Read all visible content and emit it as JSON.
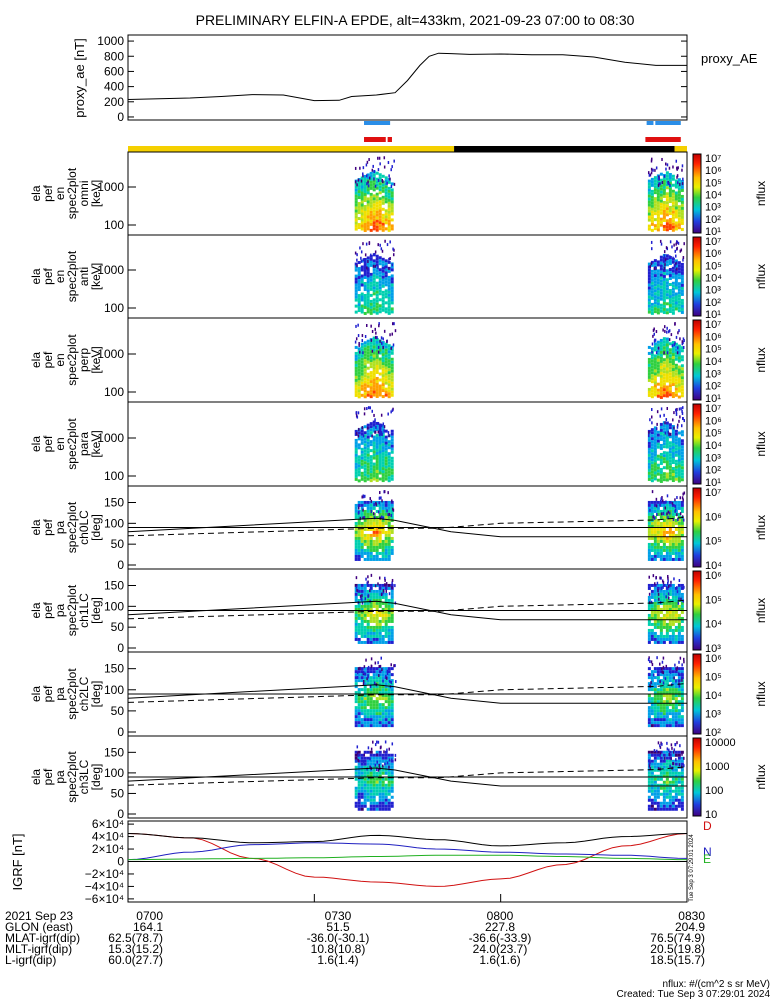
{
  "title": "PRELIMINARY ELFIN-A EPDE, alt=433km, 2021-09-23 07:00 to 08:30",
  "colors": {
    "sunlit_bar": "#f5d000",
    "eclipse_bar": "#000000",
    "blue_bar": "#2a8ee8",
    "red_bar": "#e01010",
    "bx": "#2020c0",
    "by": "#20b020",
    "bz": "#d01010",
    "btot": "#000000"
  },
  "chart_data": [
    {
      "type": "line",
      "name": "proxy_ae",
      "ylabel": "proxy_ae [nT]",
      "series_label": "proxy_AE",
      "ylim": [
        -40,
        1080
      ],
      "yticks": [
        "0",
        "200",
        "400",
        "600",
        "800",
        "1000"
      ],
      "x": [
        0,
        5,
        10,
        15,
        20,
        25,
        30,
        34,
        36,
        40,
        43,
        45,
        47,
        48.5,
        50,
        52,
        55,
        60,
        65,
        70,
        75,
        80,
        85,
        90
      ],
      "values": [
        230,
        240,
        250,
        270,
        295,
        290,
        215,
        220,
        270,
        290,
        320,
        480,
        680,
        800,
        840,
        835,
        825,
        830,
        820,
        820,
        790,
        720,
        680,
        680
      ]
    },
    {
      "type": "heatmap",
      "panels": [
        {
          "ylabel": [
            "ela",
            "pef",
            "en",
            "spec2plot",
            "omni",
            "[keV]"
          ],
          "yticks": [
            "100",
            "1000"
          ]
        },
        {
          "ylabel": [
            "ela",
            "pef",
            "en",
            "spec2plot",
            "anti",
            "[keV]"
          ],
          "yticks": [
            "100",
            "1000"
          ]
        },
        {
          "ylabel": [
            "ela",
            "pef",
            "en",
            "spec2plot",
            "perp",
            "[keV]"
          ],
          "yticks": [
            "100",
            "1000"
          ]
        },
        {
          "ylabel": [
            "ela",
            "pef",
            "en",
            "spec2plot",
            "para",
            "[keV]"
          ],
          "yticks": [
            "100",
            "1000"
          ]
        },
        {
          "ylabel": [
            "ela",
            "pef",
            "pa",
            "spec2plot",
            "ch0LC",
            "[deg]"
          ],
          "yticks": [
            "0",
            "50",
            "100",
            "150"
          ]
        },
        {
          "ylabel": [
            "ela",
            "pef",
            "pa",
            "spec2plot",
            "ch1LC",
            "[deg]"
          ],
          "yticks": [
            "0",
            "50",
            "100",
            "150"
          ]
        },
        {
          "ylabel": [
            "ela",
            "pef",
            "pa",
            "spec2plot",
            "ch2LC",
            "[deg]"
          ],
          "yticks": [
            "0",
            "50",
            "100",
            "150"
          ]
        },
        {
          "ylabel": [
            "ela",
            "pef",
            "pa",
            "spec2plot",
            "ch3LC",
            "[deg]"
          ],
          "yticks": [
            "0",
            "50",
            "100",
            "150"
          ]
        }
      ],
      "colorbar_label": "nflux",
      "colorbar_ticks": [
        [
          "10⁷",
          "10⁶",
          "10⁵",
          "10⁴",
          "10³",
          "10²",
          "10¹"
        ],
        [
          "10⁷",
          "10⁶",
          "10⁵",
          "10⁴",
          "10³",
          "10²",
          "10¹"
        ],
        [
          "10⁷",
          "10⁶",
          "10⁵",
          "10⁴",
          "10³",
          "10²",
          "10¹"
        ],
        [
          "10⁷",
          "10⁶",
          "10⁵",
          "10⁴",
          "10³",
          "10²",
          "10¹"
        ],
        [
          "10⁷",
          "10⁶",
          "10⁵",
          "10⁴"
        ],
        [
          "10⁶",
          "10⁵",
          "10⁴",
          "10³"
        ],
        [
          "10⁶",
          "10⁵",
          "10⁴",
          "10³",
          "10²"
        ],
        [
          "10000",
          "1000",
          "100",
          "10"
        ]
      ]
    },
    {
      "type": "line",
      "name": "igrf",
      "ylabel": "IGRF [nT]",
      "ylim": [
        -65000,
        65000
      ],
      "yticks": [
        "−6×10⁴",
        "−4×10⁴",
        "−2×10⁴",
        "0",
        "2×10⁴",
        "4×10⁴",
        "6×10⁴"
      ],
      "x": [
        0,
        10,
        20,
        30,
        40,
        50,
        60,
        70,
        80,
        90
      ],
      "series": [
        {
          "name": "D",
          "values": [
            45000,
            38000,
            5000,
            -25000,
            -33000,
            -40000,
            -28000,
            -5000,
            25000,
            45000
          ]
        },
        {
          "name": "N",
          "values": [
            3000,
            15000,
            27000,
            30000,
            28000,
            20000,
            15000,
            12000,
            10000,
            5000
          ]
        },
        {
          "name": "E",
          "values": [
            3000,
            4000,
            5000,
            6000,
            8000,
            10000,
            10000,
            8000,
            5000,
            3000
          ]
        },
        {
          "name": "",
          "values": [
            45000,
            38000,
            30000,
            32000,
            42000,
            35000,
            25000,
            30000,
            40000,
            45000
          ]
        }
      ]
    }
  ],
  "footer": {
    "rows": [
      [
        "2021 Sep 23",
        "0700",
        "0730",
        "0800",
        "0830"
      ],
      [
        "GLON (east)",
        "164.1",
        "51.5",
        "227.8",
        "204.9"
      ],
      [
        "MLAT-igrf(dip)",
        "62.5(78.7)",
        "-36.0(-30.1)",
        "-36.6(-33.9)",
        "76.5(74.9)"
      ],
      [
        "MLT-igrf(dip)",
        "15.3(15.2)",
        "10.8(10.8)",
        "24.0(23.7)",
        "20.5(19.8)"
      ],
      [
        "L-igrf(dip)",
        "60.0(27.7)",
        "1.6(1.4)",
        "1.6(1.6)",
        "18.5(15.7)"
      ]
    ],
    "units_note": "nflux: #/(cm^2 s sr MeV)",
    "created": "Created: Tue Sep  3 07:29:01 2024",
    "side_stamp": "Tue Sep  3 07:29:01 2024"
  }
}
